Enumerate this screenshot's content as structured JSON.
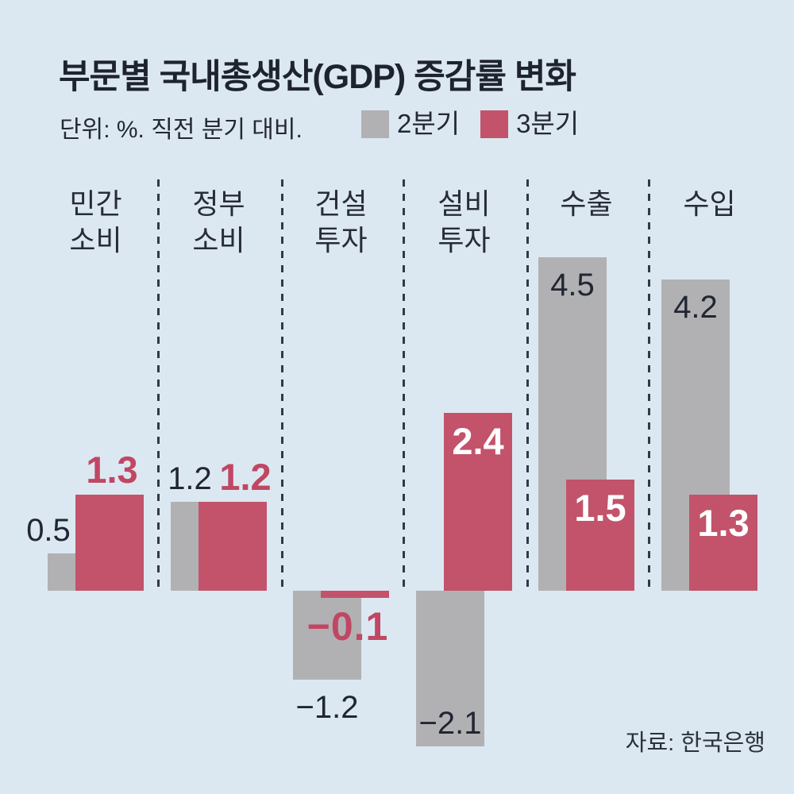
{
  "header": {
    "title": "부문별 국내총생산(GDP) 증감률 변화",
    "subtitle": "단위: %. 직전 분기 대비."
  },
  "legend": [
    {
      "label": "2분기",
      "color": "#b1b1b3"
    },
    {
      "label": "3분기",
      "color": "#c2536b"
    }
  ],
  "source": "자료: 한국은행",
  "colors": {
    "background": "#dce8f1",
    "bar_q2": "#b1b1b3",
    "bar_q3": "#c2536b",
    "dark_text": "#212633",
    "red_label_text": "#c04763",
    "white_label_text": "#ffffff",
    "separator": "#2e3a4a"
  },
  "chart_data": {
    "type": "bar",
    "title": "부문별 국내총생산(GDP) 증감률 변화",
    "subtitle": "단위: %. 직전 분기 대비.",
    "unit": "%",
    "categories": [
      "민간\n소비",
      "정부\n소비",
      "건설\n투자",
      "설비\n투자",
      "수출",
      "수입"
    ],
    "series": [
      {
        "name": "2분기",
        "color": "#b1b1b3",
        "values": [
          0.5,
          1.2,
          -1.2,
          -2.1,
          4.5,
          4.2
        ],
        "labels": [
          "0.5",
          "1.2",
          "−1.2",
          "−2.1",
          "4.5",
          "4.2"
        ]
      },
      {
        "name": "3분기",
        "color": "#c2536b",
        "values": [
          1.3,
          1.2,
          -0.1,
          2.4,
          1.5,
          1.3
        ],
        "labels": [
          "1.3",
          "1.2",
          "−0.1",
          "2.4",
          "1.5",
          "1.3"
        ]
      }
    ],
    "ylim": [
      -2.5,
      4.8
    ],
    "grid": false,
    "legend_position": "top",
    "baseline": 0,
    "source": "자료: 한국은행"
  }
}
